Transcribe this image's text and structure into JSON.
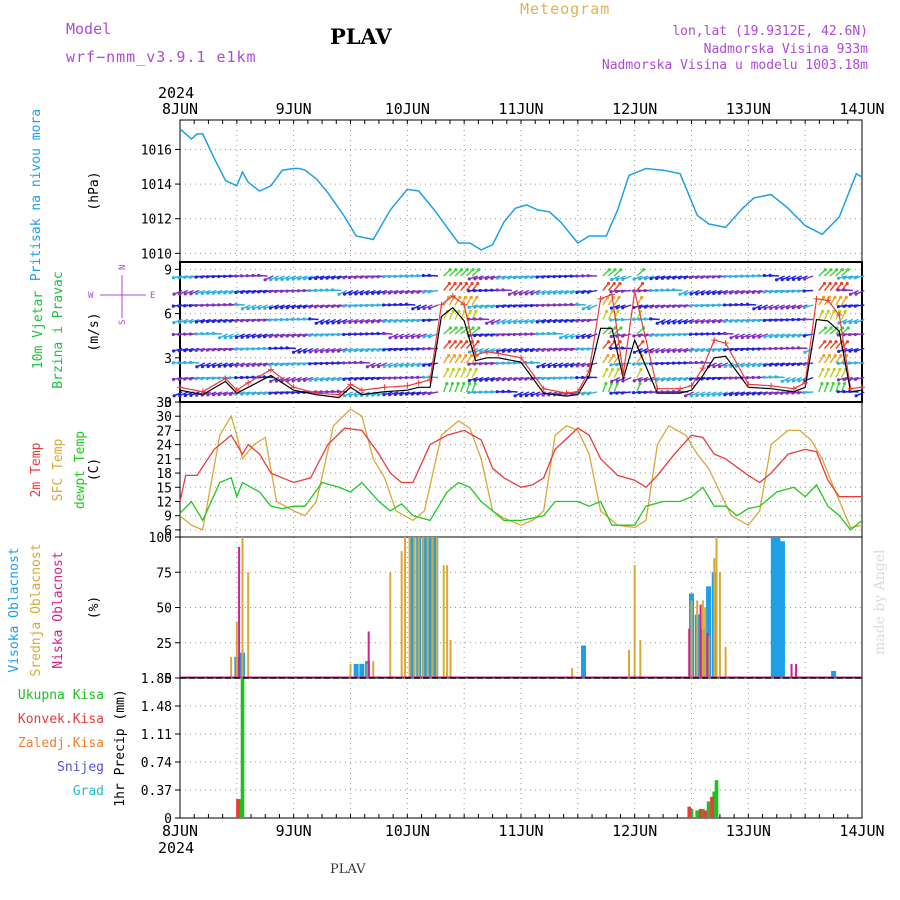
{
  "header": {
    "model_label": "Model",
    "model_version": "wrf−nmm_v3.9.1 e1km",
    "title": "PLAV",
    "meteogram": "Meteogram",
    "location": "lon,lat (19.9312E, 42.6N)",
    "elevation": "Nadmorska Visina 933m",
    "model_elevation": "Nadmorska Visina u modelu 1003.18m"
  },
  "footer": {
    "label": "PLAV",
    "credit": "made by Angel"
  },
  "colors": {
    "pressure": "#1ea0e6",
    "wind_label": "#20c040",
    "temp2m": "#e83c3c",
    "sfc": "#d8a838",
    "dewpt": "#20c820",
    "high_cloud": "#1ea0e6",
    "mid_cloud": "#d8a838",
    "low_cloud": "#d02090",
    "total_precip": "#20c020",
    "conv_precip": "#e83c3c",
    "frozen_precip": "#f08030",
    "snow": "#5050e0",
    "graupel": "#20c0c0",
    "wind_speed_line": "#000000",
    "gust_line": "#e83c3c",
    "accent_purple": "#b048d8"
  },
  "chart_data": [
    {
      "type": "line",
      "name": "pressure",
      "x_top": [
        "8JUN",
        "9JUN",
        "10JUN",
        "11JUN",
        "12JUN",
        "13JUN",
        "14JUN"
      ],
      "year_top": "2024",
      "ylabel_left": "Pritisak na nivou mora",
      "ylabel": "(hPa)",
      "ylim": [
        1009.5,
        1017.7
      ],
      "yticks": [
        1010,
        1012,
        1014,
        1016
      ],
      "series": [
        {
          "x": [
            0,
            0.05,
            0.1,
            0.15,
            0.2,
            0.3,
            0.4,
            0.5,
            0.55,
            0.6,
            0.7,
            0.8,
            0.9,
            1.0,
            1.05,
            1.1,
            1.2,
            1.3,
            1.45,
            1.55,
            1.7,
            1.85,
            2.0,
            2.1,
            2.25,
            2.35,
            2.45,
            2.55,
            2.65,
            2.75,
            2.85,
            2.95,
            3.05,
            3.15,
            3.25,
            3.35,
            3.5,
            3.6,
            3.75,
            3.85,
            3.95,
            4.1,
            4.25,
            4.4,
            4.55,
            4.65,
            4.8,
            4.95,
            5.05,
            5.2,
            5.35,
            5.5,
            5.65,
            5.8,
            5.95,
            6.0
          ],
          "values": [
            1017.2,
            1016.9,
            1016.6,
            1016.9,
            1016.9,
            1015.5,
            1014.2,
            1013.9,
            1014.7,
            1014.1,
            1013.6,
            1013.9,
            1014.8,
            1014.9,
            1014.9,
            1014.8,
            1014.3,
            1013.5,
            1012.1,
            1011.0,
            1010.8,
            1012.5,
            1013.7,
            1013.6,
            1012.4,
            1011.5,
            1010.6,
            1010.6,
            1010.2,
            1010.5,
            1011.8,
            1012.6,
            1012.8,
            1012.5,
            1012.4,
            1011.8,
            1010.6,
            1011.0,
            1011.0,
            1012.5,
            1014.5,
            1014.9,
            1014.8,
            1014.6,
            1012.2,
            1011.7,
            1011.5,
            1012.6,
            1013.2,
            1013.4,
            1012.6,
            1011.6,
            1011.1,
            1012.1,
            1014.6,
            1014.4
          ]
        }
      ]
    },
    {
      "type": "line",
      "name": "wind",
      "ylabel_left": [
        "10m Vjetar",
        "Brzina i Pravac"
      ],
      "ylabel": "(m/s)",
      "ylim": [
        0,
        9.5
      ],
      "yticks": [
        0,
        3,
        6,
        9
      ],
      "compass": [
        "N",
        "S",
        "W",
        "E"
      ],
      "series": [
        {
          "name": "speed",
          "x": [
            0,
            0.2,
            0.4,
            0.5,
            0.6,
            0.8,
            1.0,
            1.2,
            1.4,
            1.5,
            1.6,
            1.8,
            2.0,
            2.1,
            2.2,
            2.3,
            2.4,
            2.5,
            2.6,
            2.7,
            2.8,
            3.0,
            3.2,
            3.4,
            3.5,
            3.6,
            3.7,
            3.8,
            3.9,
            4.0,
            4.2,
            4.4,
            4.5,
            4.6,
            4.7,
            4.8,
            5.0,
            5.2,
            5.4,
            5.5,
            5.6,
            5.7,
            5.8,
            5.9,
            6.0
          ],
          "values": [
            0.8,
            0.5,
            1.4,
            0.6,
            1.0,
            1.8,
            0.8,
            0.5,
            0.3,
            1.0,
            0.5,
            0.7,
            0.8,
            1.0,
            1.0,
            5.8,
            6.4,
            5.5,
            2.8,
            3.0,
            3.0,
            2.7,
            0.6,
            0.4,
            0.5,
            1.8,
            5.0,
            5.0,
            1.6,
            4.2,
            0.6,
            0.6,
            0.8,
            1.8,
            3.0,
            3.1,
            1.0,
            0.9,
            0.7,
            1.0,
            5.6,
            5.5,
            4.8,
            0.7,
            0.8
          ]
        },
        {
          "name": "gust",
          "x": [
            0,
            0.2,
            0.4,
            0.5,
            0.6,
            0.8,
            1.0,
            1.2,
            1.4,
            1.5,
            1.6,
            1.8,
            2.0,
            2.1,
            2.2,
            2.3,
            2.4,
            2.5,
            2.6,
            2.7,
            2.8,
            3.0,
            3.2,
            3.4,
            3.5,
            3.6,
            3.7,
            3.8,
            3.9,
            4.0,
            4.2,
            4.4,
            4.5,
            4.6,
            4.7,
            4.8,
            5.0,
            5.2,
            5.4,
            5.5,
            5.6,
            5.7,
            5.8,
            5.9,
            6.0
          ],
          "values": [
            1.0,
            0.7,
            1.6,
            0.8,
            1.3,
            2.2,
            1.0,
            0.6,
            0.5,
            1.2,
            0.8,
            1.0,
            1.1,
            1.3,
            1.5,
            6.6,
            7.2,
            6.6,
            3.2,
            3.4,
            3.3,
            3.0,
            0.9,
            0.6,
            0.7,
            2.1,
            7.0,
            7.3,
            1.9,
            7.5,
            0.9,
            0.9,
            1.1,
            2.3,
            4.2,
            4.0,
            1.2,
            1.1,
            0.9,
            1.3,
            7.0,
            6.9,
            5.9,
            0.9,
            1.0
          ]
        }
      ]
    },
    {
      "type": "line",
      "name": "temperature",
      "ylabel_left": [
        "2m Temp",
        "SFC Temp",
        "dewpt Temp"
      ],
      "ylabel": "(C)",
      "ylim": [
        4.5,
        33
      ],
      "yticks": [
        6,
        9,
        12,
        15,
        18,
        21,
        24,
        27,
        30,
        33
      ],
      "series": [
        {
          "name": "2m",
          "x": [
            0,
            0.05,
            0.15,
            0.3,
            0.45,
            0.5,
            0.55,
            0.6,
            0.7,
            0.8,
            0.9,
            1.0,
            1.15,
            1.3,
            1.45,
            1.6,
            1.75,
            1.85,
            1.95,
            2.05,
            2.2,
            2.35,
            2.5,
            2.65,
            2.75,
            2.85,
            3.0,
            3.1,
            3.2,
            3.3,
            3.5,
            3.6,
            3.7,
            3.85,
            4.0,
            4.1,
            4.2,
            4.35,
            4.5,
            4.6,
            4.7,
            4.8,
            5.0,
            5.1,
            5.2,
            5.35,
            5.5,
            5.6,
            5.7,
            5.8,
            6.0
          ],
          "values": [
            12,
            17.5,
            17.5,
            23,
            26,
            24,
            22,
            24,
            22,
            18,
            17,
            16,
            17,
            24,
            27.5,
            27,
            22,
            18,
            16,
            16,
            24,
            26,
            27,
            25,
            19,
            17,
            15,
            15.5,
            17,
            23,
            27.5,
            26,
            21,
            17.5,
            16.5,
            15,
            17.5,
            22,
            26,
            25.5,
            22,
            21,
            17.5,
            16,
            18,
            22,
            23,
            22.5,
            16.5,
            13,
            13
          ]
        },
        {
          "name": "sfc",
          "x": [
            0,
            0.1,
            0.2,
            0.35,
            0.45,
            0.5,
            0.55,
            0.65,
            0.75,
            0.85,
            1.0,
            1.1,
            1.2,
            1.35,
            1.5,
            1.6,
            1.7,
            1.8,
            1.9,
            2.05,
            2.15,
            2.3,
            2.45,
            2.55,
            2.65,
            2.75,
            2.85,
            3.0,
            3.1,
            3.2,
            3.3,
            3.4,
            3.5,
            3.6,
            3.7,
            3.85,
            4.0,
            4.1,
            4.2,
            4.3,
            4.45,
            4.55,
            4.65,
            4.75,
            4.85,
            5.0,
            5.1,
            5.2,
            5.35,
            5.45,
            5.55,
            5.65,
            5.75,
            5.9,
            6.0
          ],
          "values": [
            9,
            7,
            6,
            26,
            30,
            26,
            21,
            24,
            25.5,
            12,
            10,
            9,
            12,
            28,
            31.5,
            30,
            21,
            17,
            10,
            8,
            10,
            26,
            29,
            27.5,
            21,
            10,
            8.5,
            7,
            8,
            10,
            26,
            28,
            27,
            22,
            10,
            7,
            6.5,
            8,
            24,
            28,
            26,
            22,
            19,
            14,
            9,
            7,
            10,
            24,
            27,
            27,
            25,
            21,
            15,
            6.5,
            7
          ]
        },
        {
          "name": "dewpt",
          "x": [
            0,
            0.1,
            0.2,
            0.35,
            0.45,
            0.5,
            0.55,
            0.7,
            0.8,
            0.9,
            1.0,
            1.1,
            1.25,
            1.4,
            1.5,
            1.6,
            1.75,
            1.85,
            1.95,
            2.05,
            2.2,
            2.35,
            2.45,
            2.55,
            2.65,
            2.75,
            2.85,
            3.0,
            3.1,
            3.2,
            3.3,
            3.4,
            3.5,
            3.6,
            3.7,
            3.8,
            3.95,
            4.0,
            4.1,
            4.25,
            4.4,
            4.5,
            4.6,
            4.7,
            4.8,
            4.9,
            5.0,
            5.1,
            5.25,
            5.4,
            5.5,
            5.6,
            5.7,
            5.8,
            5.9,
            6.0
          ],
          "values": [
            9.5,
            12,
            8,
            16,
            17,
            13,
            16,
            14,
            11,
            10.5,
            11,
            11,
            16,
            15,
            14,
            16,
            12,
            10,
            11.5,
            9,
            8,
            14,
            16,
            15,
            12,
            10,
            8,
            8,
            8.5,
            9,
            12,
            12,
            12,
            11,
            12,
            7,
            7,
            7,
            11,
            12,
            12,
            13,
            15,
            11,
            11,
            9,
            10.5,
            11,
            14,
            15,
            13,
            15.5,
            11,
            9,
            6,
            8
          ]
        }
      ]
    },
    {
      "type": "bar",
      "name": "cloud",
      "ylabel_left": [
        "Visoka Oblacnost",
        "Srednja Oblacnost",
        "Niska Oblacnost"
      ],
      "ylabel": "(%)",
      "ylim": [
        0,
        100
      ],
      "yticks": [
        0,
        25,
        50,
        75,
        100
      ],
      "series": [
        {
          "name": "high",
          "x": [
            0.5,
            0.55,
            1.55,
            1.6,
            1.65,
            2.05,
            2.1,
            2.15,
            2.2,
            2.25,
            3.55,
            4.5,
            4.55,
            4.6,
            4.65,
            4.7,
            5.22,
            5.26,
            5.3,
            5.75
          ],
          "values": [
            15,
            18,
            10,
            10,
            12,
            100,
            100,
            100,
            100,
            100,
            23,
            60,
            45,
            35,
            65,
            75,
            100,
            100,
            97,
            5
          ]
        },
        {
          "name": "mid",
          "x": [
            0.45,
            0.5,
            0.55,
            0.6,
            1.5,
            1.65,
            1.7,
            1.85,
            1.95,
            1.98,
            2.02,
            2.06,
            2.1,
            2.14,
            2.18,
            2.22,
            2.26,
            2.32,
            2.35,
            2.38,
            3.45,
            3.95,
            4.0,
            4.05,
            4.5,
            4.55,
            4.6,
            4.62,
            4.65,
            4.7,
            4.72,
            4.75,
            4.8
          ],
          "values": [
            15,
            40,
            100,
            75,
            10,
            10,
            12,
            75,
            90,
            100,
            100,
            100,
            100,
            100,
            100,
            100,
            100,
            80,
            80,
            27,
            7,
            20,
            80,
            27,
            55,
            55,
            55,
            50,
            30,
            85,
            100,
            75,
            22
          ]
        },
        {
          "name": "low",
          "x": [
            0.52,
            1.66,
            4.48,
            4.58,
            4.64,
            5.38,
            5.42
          ],
          "values": [
            93,
            33,
            35,
            52,
            32,
            10,
            10
          ]
        }
      ]
    },
    {
      "type": "bar",
      "name": "precip",
      "ylabel_left": [
        "Ukupna Kisa",
        "Konvek.Kisa",
        "Zaledj.Kisa",
        "Snijeg",
        "Grad"
      ],
      "ylabel": "1hr Precip (mm)",
      "x_bottom": [
        "8JUN",
        "9JUN",
        "10JUN",
        "11JUN",
        "12JUN",
        "13JUN",
        "14JUN"
      ],
      "year_bottom": "2024",
      "ylim": [
        0,
        1.85
      ],
      "yticks": [
        0,
        0.37,
        0.74,
        1.11,
        1.48,
        1.85
      ],
      "series": [
        {
          "name": "total",
          "x": [
            0.53,
            0.55,
            4.5,
            4.55,
            4.6,
            4.65,
            4.7,
            4.72
          ],
          "values": [
            0.25,
            1.85,
            0.12,
            0.1,
            0.12,
            0.22,
            0.35,
            0.5
          ]
        },
        {
          "name": "convective",
          "x": [
            0.51,
            4.48,
            4.58,
            4.62,
            4.68
          ],
          "values": [
            0.25,
            0.15,
            0.12,
            0.1,
            0.28
          ]
        }
      ]
    }
  ]
}
